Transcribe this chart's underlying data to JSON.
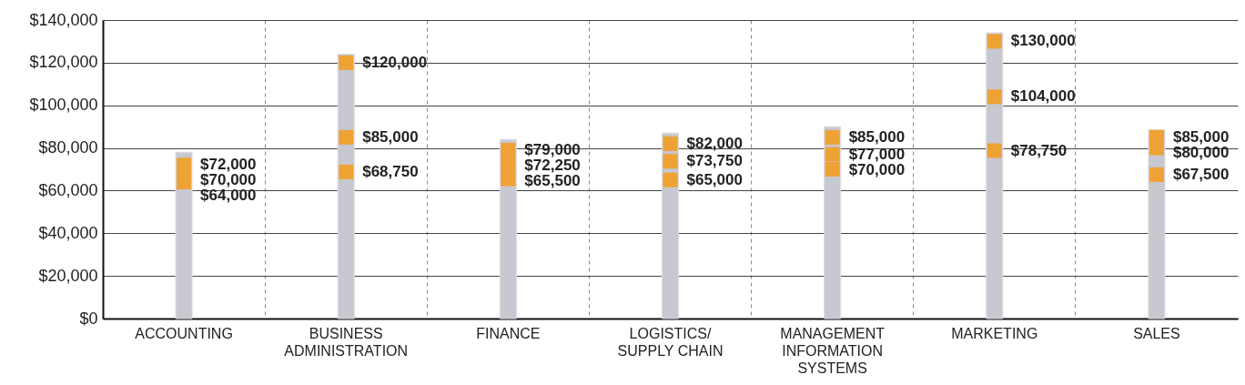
{
  "chart_data": {
    "type": "bar",
    "categories": [
      "ACCOUNTING",
      "BUSINESS\nADMINISTRATION",
      "FINANCE",
      "LOGISTICS/\nSUPPLY CHAIN",
      "MANAGEMENT\nINFORMATION\nSYSTEMS",
      "MARKETING",
      "SALES"
    ],
    "series": [
      {
        "type": "bar",
        "color": "#c8c8d0",
        "values": [
          78000,
          124000,
          84000,
          87000,
          90000,
          134000,
          88500
        ]
      },
      {
        "type": "scatter",
        "color": "#eea236",
        "marker": "square",
        "x": [
          "ACCOUNTING",
          "ACCOUNTING",
          "ACCOUNTING",
          "BUSINESS\nADMINISTRATION",
          "BUSINESS\nADMINISTRATION",
          "BUSINESS\nADMINISTRATION",
          "FINANCE",
          "FINANCE",
          "FINANCE",
          "LOGISTICS/\nSUPPLY CHAIN",
          "LOGISTICS/\nSUPPLY CHAIN",
          "LOGISTICS/\nSUPPLY CHAIN",
          "MANAGEMENT\nINFORMATION\nSYSTEMS",
          "MANAGEMENT\nINFORMATION\nSYSTEMS",
          "MANAGEMENT\nINFORMATION\nSYSTEMS",
          "MARKETING",
          "MARKETING",
          "MARKETING",
          "SALES",
          "SALES",
          "SALES"
        ],
        "values": [
          72000,
          70000,
          64000,
          120000,
          85000,
          68750,
          79000,
          72250,
          65500,
          82000,
          73750,
          65000,
          85000,
          77000,
          70000,
          130000,
          104000,
          78750,
          85000,
          80000,
          67500
        ],
        "value_labels": [
          "$72,000",
          "$70,000",
          "$64,000",
          "$120,000",
          "$85,000",
          "$68,750",
          "$79,000",
          "$72,250",
          "$65,500",
          "$82,000",
          "$73,750",
          "$65,000",
          "$85,000",
          "$77,000",
          "$70,000",
          "$130,000",
          "$104,000",
          "$78,750",
          "$85,000",
          "$80,000",
          "$67,500"
        ]
      }
    ],
    "ylim": [
      0,
      140000
    ],
    "yticks": [
      {
        "value": 0,
        "label": "$0"
      },
      {
        "value": 20000,
        "label": "$20,000"
      },
      {
        "value": 40000,
        "label": "$40,000"
      },
      {
        "value": 60000,
        "label": "$60,000"
      },
      {
        "value": 80000,
        "label": "$80,000"
      },
      {
        "value": 100000,
        "label": "$100,000"
      },
      {
        "value": 120000,
        "label": "$120,000"
      },
      {
        "value": 140000,
        "label": "$140,000"
      }
    ],
    "grid": true,
    "legend": false
  }
}
